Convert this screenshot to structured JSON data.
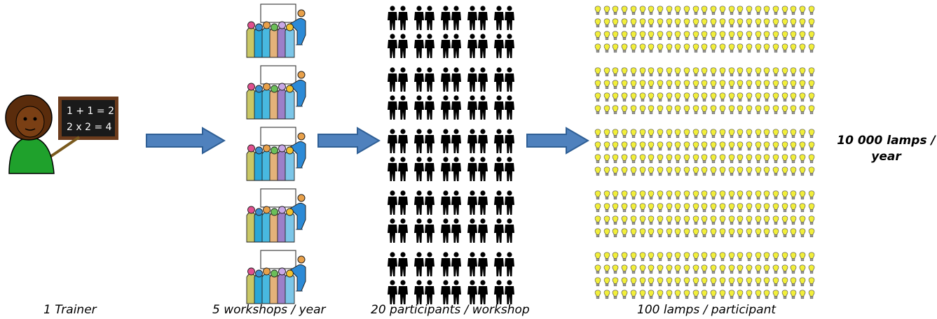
{
  "trainer": {
    "caption": "1 Trainer",
    "board_line1": "1 + 1 = 2",
    "board_line2": "2 x 2 = 4",
    "icon": "teacher-with-blackboard"
  },
  "workshops": {
    "caption": "5 workshops / year",
    "count": 5,
    "icon": "workshop-group"
  },
  "participants": {
    "caption": "20 participants / workshop",
    "groups": 5,
    "per_group": 20,
    "icon": "person-pair"
  },
  "lamps": {
    "caption": "100 lamps / participant",
    "groups": 5,
    "per_group": 100,
    "color": "#f2ef3a",
    "icon": "light-bulb"
  },
  "total": {
    "line1": "10 000  lamps /",
    "line2": "year"
  },
  "arrow_color": "#4f81bd",
  "arrow_outline": "#2f5f95"
}
